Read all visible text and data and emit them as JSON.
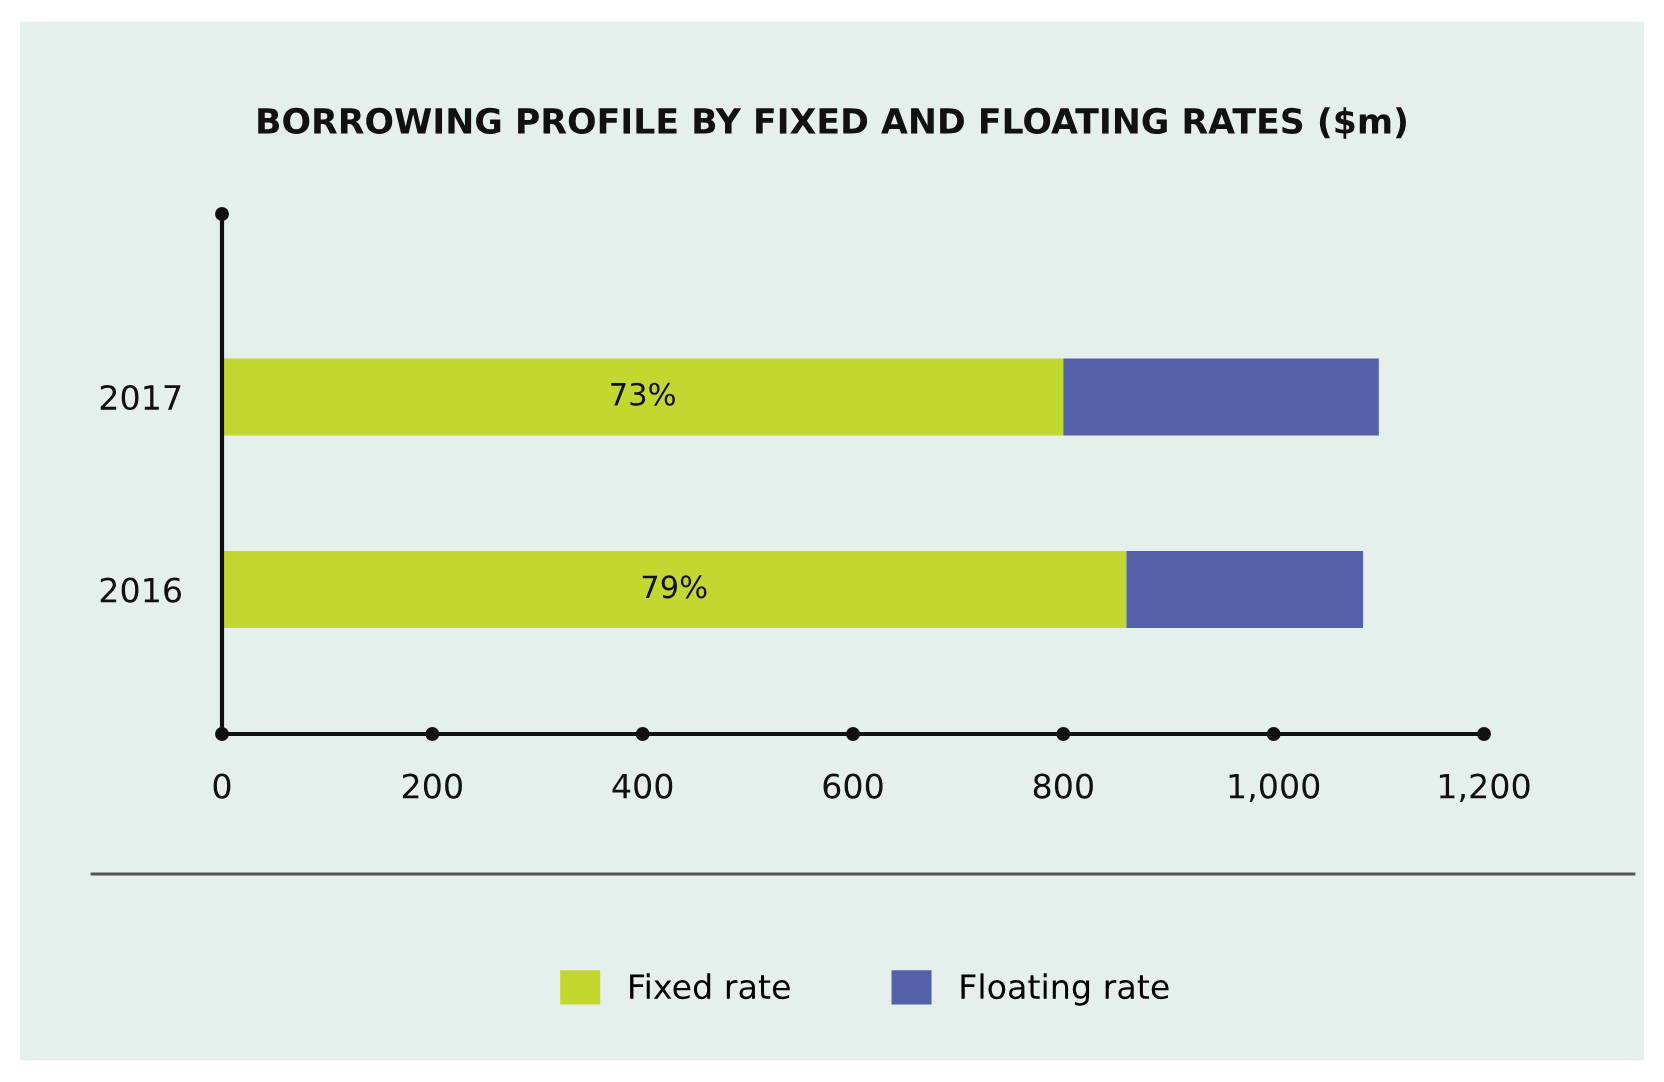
{
  "chart_data": {
    "type": "bar",
    "title": "BORROWING PROFILE BY FIXED AND FLOATING RATES ($m)",
    "orientation": "horizontal",
    "stacked": true,
    "categories": [
      "2017",
      "2016"
    ],
    "series": [
      {
        "name": "Fixed rate",
        "color": "#c2d830",
        "values": [
          800,
          860
        ]
      },
      {
        "name": "Floating rate",
        "color": "#5461a8",
        "values": [
          300,
          225
        ]
      }
    ],
    "xlim": [
      0,
      1200
    ],
    "xticks": [
      0,
      200,
      400,
      600,
      800,
      {
        "value": 1000,
        "label": "1,000"
      },
      {
        "value": 1200,
        "label": "1,200"
      }
    ],
    "annotations": [
      "73%",
      "79%"
    ],
    "grid": false,
    "legend": "bottom"
  }
}
